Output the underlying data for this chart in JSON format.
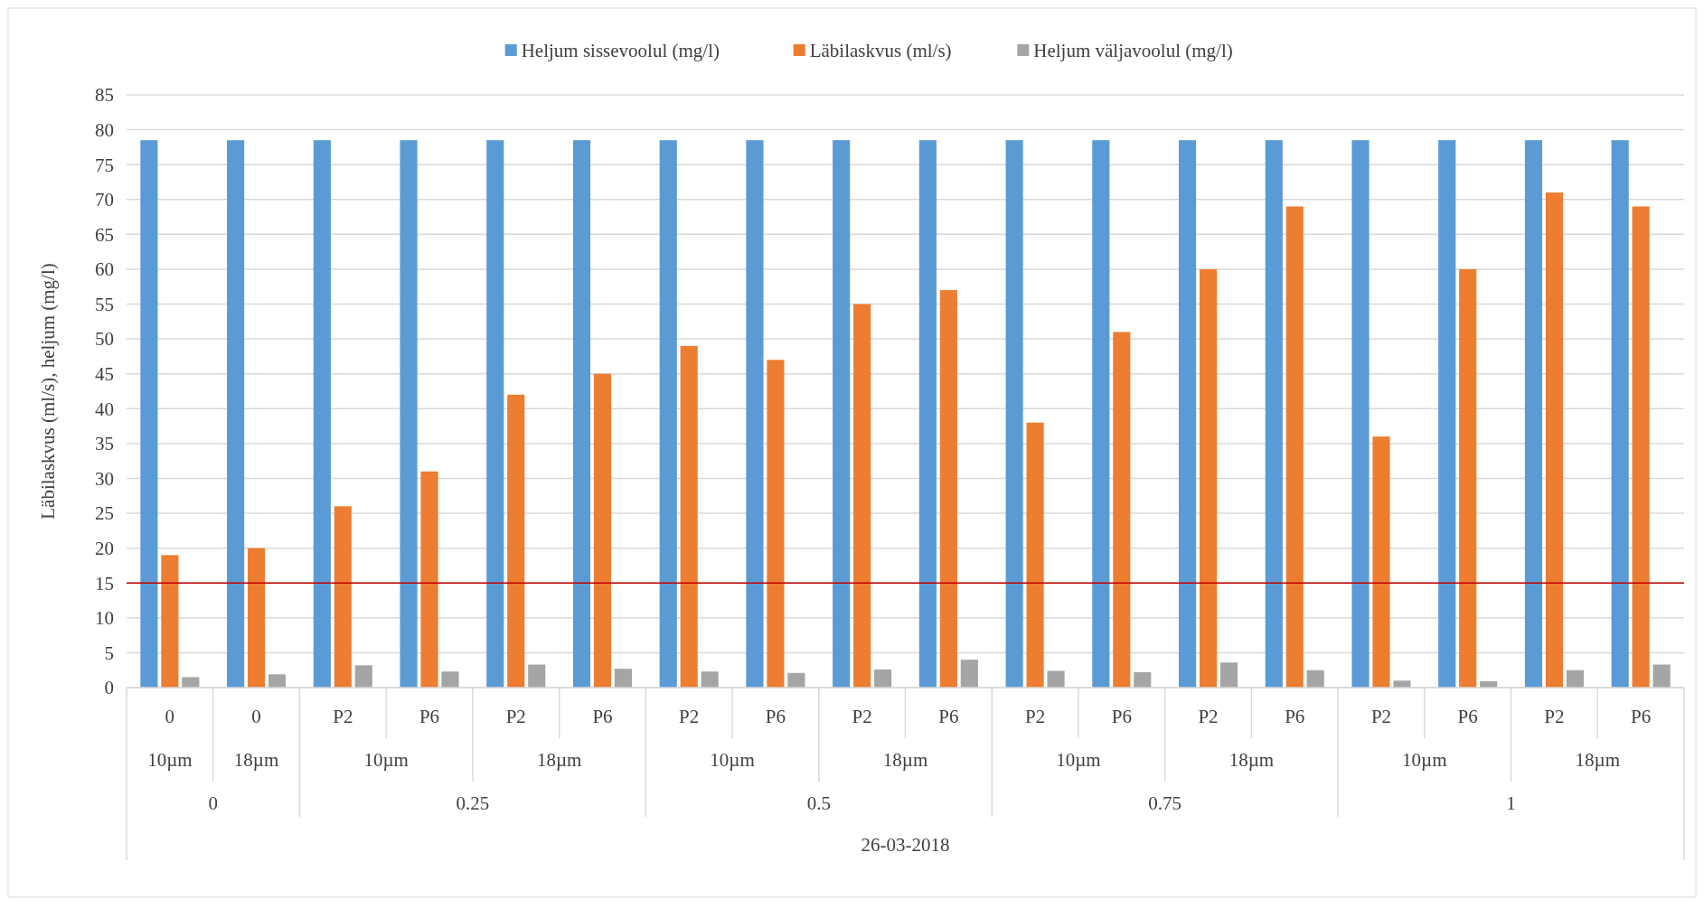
{
  "chart_data": {
    "type": "bar",
    "ylabel": "Läbilaskvus (ml/s), heljum (mg/l)",
    "categories": [
      "0",
      "0",
      "P2",
      "P6",
      "P2",
      "P6",
      "P2",
      "P6",
      "P2",
      "P6",
      "P2",
      "P6",
      "P2",
      "P6",
      "P2",
      "P6",
      "P2",
      "P6"
    ],
    "annotations": [
      "10µm",
      "18µm",
      "10µm",
      "18µm",
      "10µm",
      "18µm",
      "10µm",
      "18µm",
      "10µm",
      "18µm",
      "0",
      "0.25",
      "0.5",
      "0.75",
      "1",
      "26-03-2018"
    ],
    "series": [
      {
        "name": "Heljum sissevoolul (mg/l)",
        "color": "#5b9bd5",
        "values": [
          78.5,
          78.5,
          78.5,
          78.5,
          78.5,
          78.5,
          78.5,
          78.5,
          78.5,
          78.5,
          78.5,
          78.5,
          78.5,
          78.5,
          78.5,
          78.5,
          78.5,
          78.5
        ]
      },
      {
        "name": "Läbilaskvus (ml/s)",
        "color": "#ed7d31",
        "values": [
          19,
          20,
          26,
          31,
          42,
          45,
          49,
          47,
          55,
          57,
          38,
          51,
          60,
          69,
          36,
          60,
          71,
          69
        ]
      },
      {
        "name": "Heljum väljavoolul (mg/l)",
        "color": "#a5a5a5",
        "values": [
          1.5,
          1.9,
          3.2,
          2.3,
          3.3,
          2.7,
          2.3,
          2.1,
          2.6,
          4.0,
          2.4,
          2.2,
          3.6,
          2.5,
          1.0,
          0.9,
          2.5,
          3.3
        ]
      }
    ],
    "ylim": [
      0,
      85
    ],
    "yticks": [
      0,
      5,
      10,
      15,
      20,
      25,
      30,
      35,
      40,
      45,
      50,
      55,
      60,
      65,
      70,
      75,
      80,
      85
    ],
    "grid": "y",
    "legend": "top",
    "ref_lines": [
      {
        "axis": "y",
        "value": 15,
        "color": "#c00000"
      }
    ]
  }
}
